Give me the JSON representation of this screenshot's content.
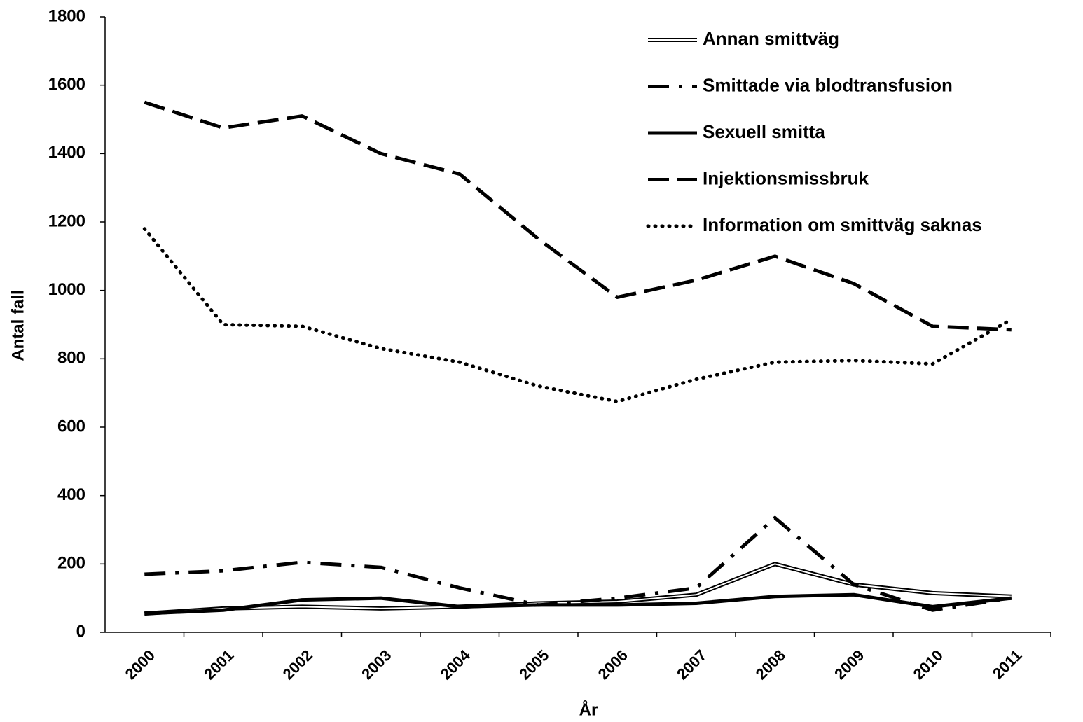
{
  "chart_data": {
    "type": "line",
    "x_label": "År",
    "y_label": "Antal fall",
    "categories": [
      "2000",
      "2001",
      "2002",
      "2003",
      "2004",
      "2005",
      "2006",
      "2007",
      "2008",
      "2009",
      "2010",
      "2011"
    ],
    "ylim": [
      0,
      1800
    ],
    "yticks": [
      0,
      200,
      400,
      600,
      800,
      1000,
      1200,
      1400,
      1600,
      1800
    ],
    "legend": "top-right",
    "series": [
      {
        "name": "Annan smittväg",
        "color": "#000000",
        "style": "double",
        "values": [
          55,
          70,
          75,
          70,
          75,
          85,
          90,
          110,
          200,
          140,
          115,
          105
        ]
      },
      {
        "name": "Smittade via blodtransfusion",
        "color": "#000000",
        "style": "dashdot",
        "values": [
          170,
          180,
          205,
          190,
          130,
          80,
          100,
          130,
          335,
          140,
          65,
          100
        ]
      },
      {
        "name": "Sexuell smitta",
        "color": "#000000",
        "style": "solid",
        "values": [
          55,
          65,
          95,
          100,
          75,
          80,
          80,
          85,
          105,
          110,
          75,
          100
        ]
      },
      {
        "name": "Injektionsmissbruk",
        "color": "#000000",
        "style": "dashed",
        "values": [
          1550,
          1475,
          1510,
          1400,
          1340,
          1150,
          980,
          1030,
          1100,
          1020,
          895,
          885
        ]
      },
      {
        "name": "Information om smittväg saknas",
        "color": "#000000",
        "style": "dotted",
        "values": [
          1180,
          900,
          895,
          830,
          790,
          720,
          675,
          740,
          790,
          795,
          785,
          915
        ]
      }
    ]
  }
}
